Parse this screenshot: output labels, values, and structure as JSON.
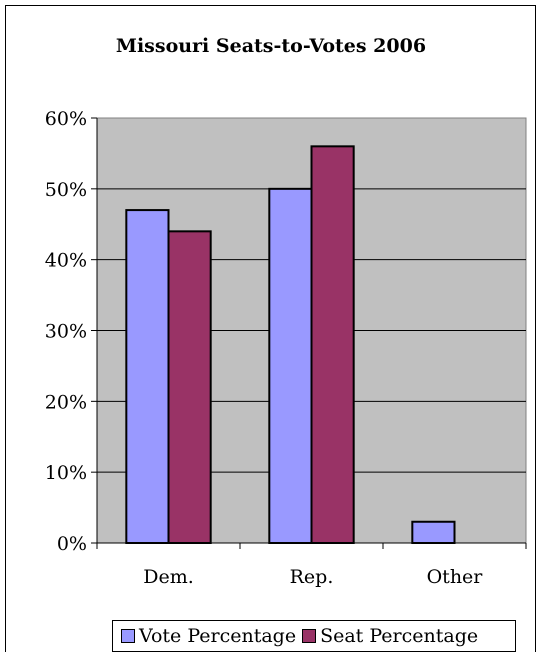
{
  "chart_data": {
    "type": "bar",
    "title": "Missouri Seats-to-Votes 2006",
    "categories": [
      "Dem.",
      "Rep.",
      "Other"
    ],
    "series": [
      {
        "name": "Vote Percentage",
        "color": "#9999ff",
        "values": [
          47,
          50,
          3
        ]
      },
      {
        "name": "Seat Percentage",
        "color": "#993366",
        "values": [
          44,
          56,
          0
        ]
      }
    ],
    "ylim": [
      0,
      60
    ],
    "yticks": [
      0,
      10,
      20,
      30,
      40,
      50,
      60
    ],
    "ytick_labels": [
      "0%",
      "10%",
      "20%",
      "30%",
      "40%",
      "50%",
      "60%"
    ],
    "grid": true,
    "plot_background": "#c0c0c0",
    "legend_position": "bottom"
  }
}
